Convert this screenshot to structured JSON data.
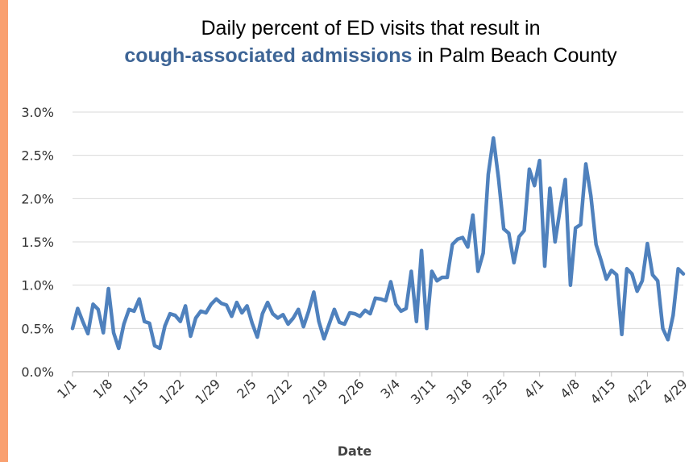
{
  "colors": {
    "accent_bar": "#F9A070",
    "line": "#4F81BD",
    "title_highlight": "#3E6596",
    "grid": "#D9D9D9",
    "axis": "#BFBFBF"
  },
  "chart_data": {
    "type": "line",
    "title_line1": "Daily percent of ED visits that result in",
    "title_highlight": "cough-associated admissions",
    "title_suffix": " in Palm Beach County",
    "xlabel": "Date",
    "ylabel": "",
    "x_tick_labels": [
      "1/1",
      "1/8",
      "1/15",
      "1/22",
      "1/29",
      "2/5",
      "2/12",
      "2/19",
      "2/26",
      "3/4",
      "3/11",
      "3/18",
      "3/25",
      "4/1",
      "4/8",
      "4/15",
      "4/22",
      "4/29"
    ],
    "y_tick_labels": [
      "0.0%",
      "0.5%",
      "1.0%",
      "1.5%",
      "2.0%",
      "2.5%",
      "3.0%"
    ],
    "ylim": [
      0,
      3.0
    ],
    "y_unit": "%",
    "grid": "horizontal",
    "series": [
      {
        "values": [
          0.5,
          0.73,
          0.58,
          0.44,
          0.78,
          0.72,
          0.45,
          0.96,
          0.45,
          0.27,
          0.55,
          0.72,
          0.7,
          0.84,
          0.58,
          0.56,
          0.3,
          0.27,
          0.53,
          0.67,
          0.65,
          0.58,
          0.76,
          0.41,
          0.62,
          0.7,
          0.68,
          0.78,
          0.84,
          0.79,
          0.77,
          0.64,
          0.8,
          0.68,
          0.76,
          0.56,
          0.4,
          0.67,
          0.8,
          0.67,
          0.62,
          0.66,
          0.55,
          0.62,
          0.72,
          0.52,
          0.7,
          0.92,
          0.58,
          0.38,
          0.55,
          0.72,
          0.57,
          0.55,
          0.68,
          0.67,
          0.64,
          0.71,
          0.67,
          0.85,
          0.84,
          0.82,
          1.04,
          0.78,
          0.7,
          0.73,
          1.16,
          0.58,
          1.4,
          0.5,
          1.16,
          1.05,
          1.09,
          1.09,
          1.47,
          1.53,
          1.55,
          1.44,
          1.81,
          1.16,
          1.37,
          2.28,
          2.7,
          2.23,
          1.65,
          1.6,
          1.26,
          1.56,
          1.63,
          2.34,
          2.15,
          2.44,
          1.22,
          2.12,
          1.5,
          1.88,
          2.22,
          1.0,
          1.66,
          1.7,
          2.4,
          2.03,
          1.47,
          1.28,
          1.07,
          1.17,
          1.12,
          0.43,
          1.19,
          1.13,
          0.93,
          1.05,
          1.48,
          1.12,
          1.05,
          0.5,
          0.37,
          0.65,
          1.19,
          1.13
        ]
      }
    ]
  }
}
